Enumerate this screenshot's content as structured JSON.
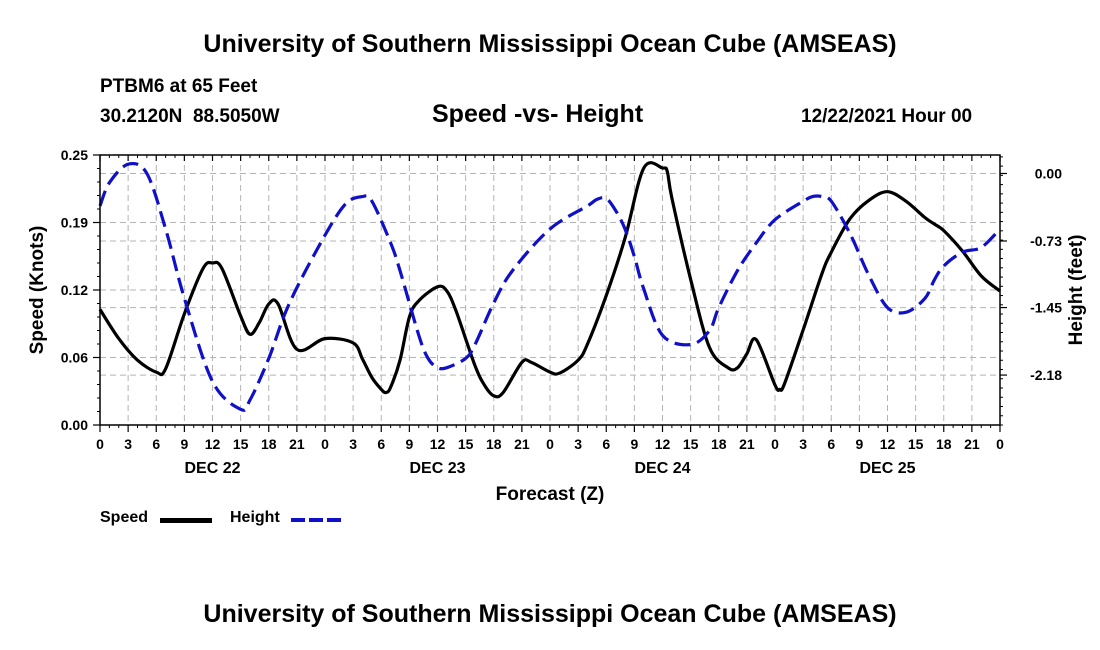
{
  "header": {
    "title": "University of Southern Mississippi Ocean Cube (AMSEAS)",
    "station": "PTBM6 at 65 Feet",
    "coords": "30.2120N  88.5050W",
    "date": "12/22/2021 Hour 00",
    "footer_title": "University of Southern Mississippi Ocean Cube (AMSEAS)"
  },
  "legend": {
    "speed_label": "Speed",
    "height_label": "Height"
  },
  "colors": {
    "speed": "#000000",
    "height": "#1010c8",
    "grid": "#b4b4b4"
  },
  "chart_data": {
    "type": "line",
    "title": "Speed -vs- Height",
    "xlabel": "Forecast (Z)",
    "ylabel": "Speed (Knots)",
    "y2label": "Height (feet)",
    "xlim": [
      0,
      96
    ],
    "ylim": [
      0,
      0.25
    ],
    "y2lim": [
      -2.72,
      0.2
    ],
    "x_tick_hours": [
      0,
      3,
      6,
      9,
      12,
      15,
      18,
      21,
      24,
      27,
      30,
      33,
      36,
      39,
      42,
      45,
      48,
      51,
      54,
      57,
      60,
      63,
      66,
      69,
      72,
      75,
      78,
      81,
      84,
      87,
      90,
      93,
      96
    ],
    "x_tick_labels": [
      "0",
      "3",
      "6",
      "9",
      "12",
      "15",
      "18",
      "21",
      "0",
      "3",
      "6",
      "9",
      "12",
      "15",
      "18",
      "21",
      "0",
      "3",
      "6",
      "9",
      "12",
      "15",
      "18",
      "21",
      "0",
      "3",
      "6",
      "9",
      "12",
      "15",
      "18",
      "21",
      "0"
    ],
    "day_labels": [
      {
        "hour": 12,
        "label": "DEC 22"
      },
      {
        "hour": 36,
        "label": "DEC 23"
      },
      {
        "hour": 60,
        "label": "DEC 24"
      },
      {
        "hour": 84,
        "label": "DEC 25"
      }
    ],
    "y_ticks": [
      {
        "value": 0.0,
        "label": "0.00"
      },
      {
        "value": 0.0625,
        "label": "0.06"
      },
      {
        "value": 0.125,
        "label": "0.12"
      },
      {
        "value": 0.1875,
        "label": "0.19"
      },
      {
        "value": 0.25,
        "label": "0.25"
      }
    ],
    "y2_ticks": [
      {
        "value": 0.0,
        "label": "0.00"
      },
      {
        "value": -0.73,
        "label": "-0.73"
      },
      {
        "value": -1.45,
        "label": "-1.45"
      },
      {
        "value": -2.18,
        "label": "-2.18"
      }
    ],
    "series": [
      {
        "name": "Speed",
        "axis": "left",
        "style": "solid",
        "x": [
          0,
          2,
          4,
          6,
          7,
          9,
          11,
          12,
          13,
          15,
          16,
          17,
          18,
          19,
          21,
          24,
          27,
          28,
          29,
          30,
          30.5,
          31,
          32,
          33,
          34,
          36,
          37,
          38,
          40,
          41,
          42,
          43,
          45,
          46,
          48,
          49,
          51,
          52,
          54,
          56,
          58,
          60,
          60.5,
          61,
          63,
          65,
          67,
          68,
          69,
          70,
          72,
          72.5,
          73,
          75,
          77,
          78,
          80,
          82,
          84,
          86,
          88,
          89,
          90,
          92,
          94,
          96
        ],
        "y": [
          0.107,
          0.08,
          0.06,
          0.049,
          0.052,
          0.103,
          0.145,
          0.15,
          0.145,
          0.101,
          0.084,
          0.095,
          0.112,
          0.112,
          0.07,
          0.08,
          0.076,
          0.061,
          0.044,
          0.033,
          0.03,
          0.035,
          0.06,
          0.1,
          0.115,
          0.128,
          0.124,
          0.105,
          0.055,
          0.037,
          0.027,
          0.03,
          0.058,
          0.058,
          0.049,
          0.048,
          0.06,
          0.075,
          0.12,
          0.173,
          0.238,
          0.238,
          0.235,
          0.21,
          0.135,
          0.072,
          0.053,
          0.053,
          0.066,
          0.079,
          0.037,
          0.033,
          0.038,
          0.088,
          0.14,
          0.16,
          0.191,
          0.208,
          0.216,
          0.207,
          0.192,
          0.186,
          0.18,
          0.161,
          0.138,
          0.124
        ]
      },
      {
        "name": "Height",
        "axis": "right",
        "style": "dashed",
        "x": [
          0,
          1,
          3,
          5,
          7,
          9,
          12,
          15,
          16,
          18,
          20,
          23,
          26,
          28,
          29,
          31,
          32,
          34,
          35,
          36,
          37,
          39,
          40,
          42,
          44,
          48,
          52,
          53,
          54,
          55,
          56,
          57,
          58,
          60,
          63,
          65,
          66,
          68,
          70,
          72,
          75,
          76,
          77,
          78,
          80,
          82,
          84,
          86,
          88,
          89,
          90,
          92,
          94,
          96
        ],
        "y": [
          -0.35,
          -0.1,
          0.1,
          0.0,
          -0.6,
          -1.35,
          -2.25,
          -2.55,
          -2.45,
          -2.0,
          -1.45,
          -0.85,
          -0.35,
          -0.25,
          -0.3,
          -0.75,
          -1.05,
          -1.75,
          -2.0,
          -2.1,
          -2.1,
          -2.0,
          -1.85,
          -1.4,
          -1.05,
          -0.6,
          -0.35,
          -0.28,
          -0.27,
          -0.4,
          -0.6,
          -0.9,
          -1.25,
          -1.75,
          -1.85,
          -1.7,
          -1.45,
          -1.05,
          -0.75,
          -0.5,
          -0.3,
          -0.25,
          -0.25,
          -0.3,
          -0.65,
          -1.1,
          -1.45,
          -1.5,
          -1.35,
          -1.15,
          -1.0,
          -0.85,
          -0.8,
          -0.6
        ]
      }
    ]
  }
}
